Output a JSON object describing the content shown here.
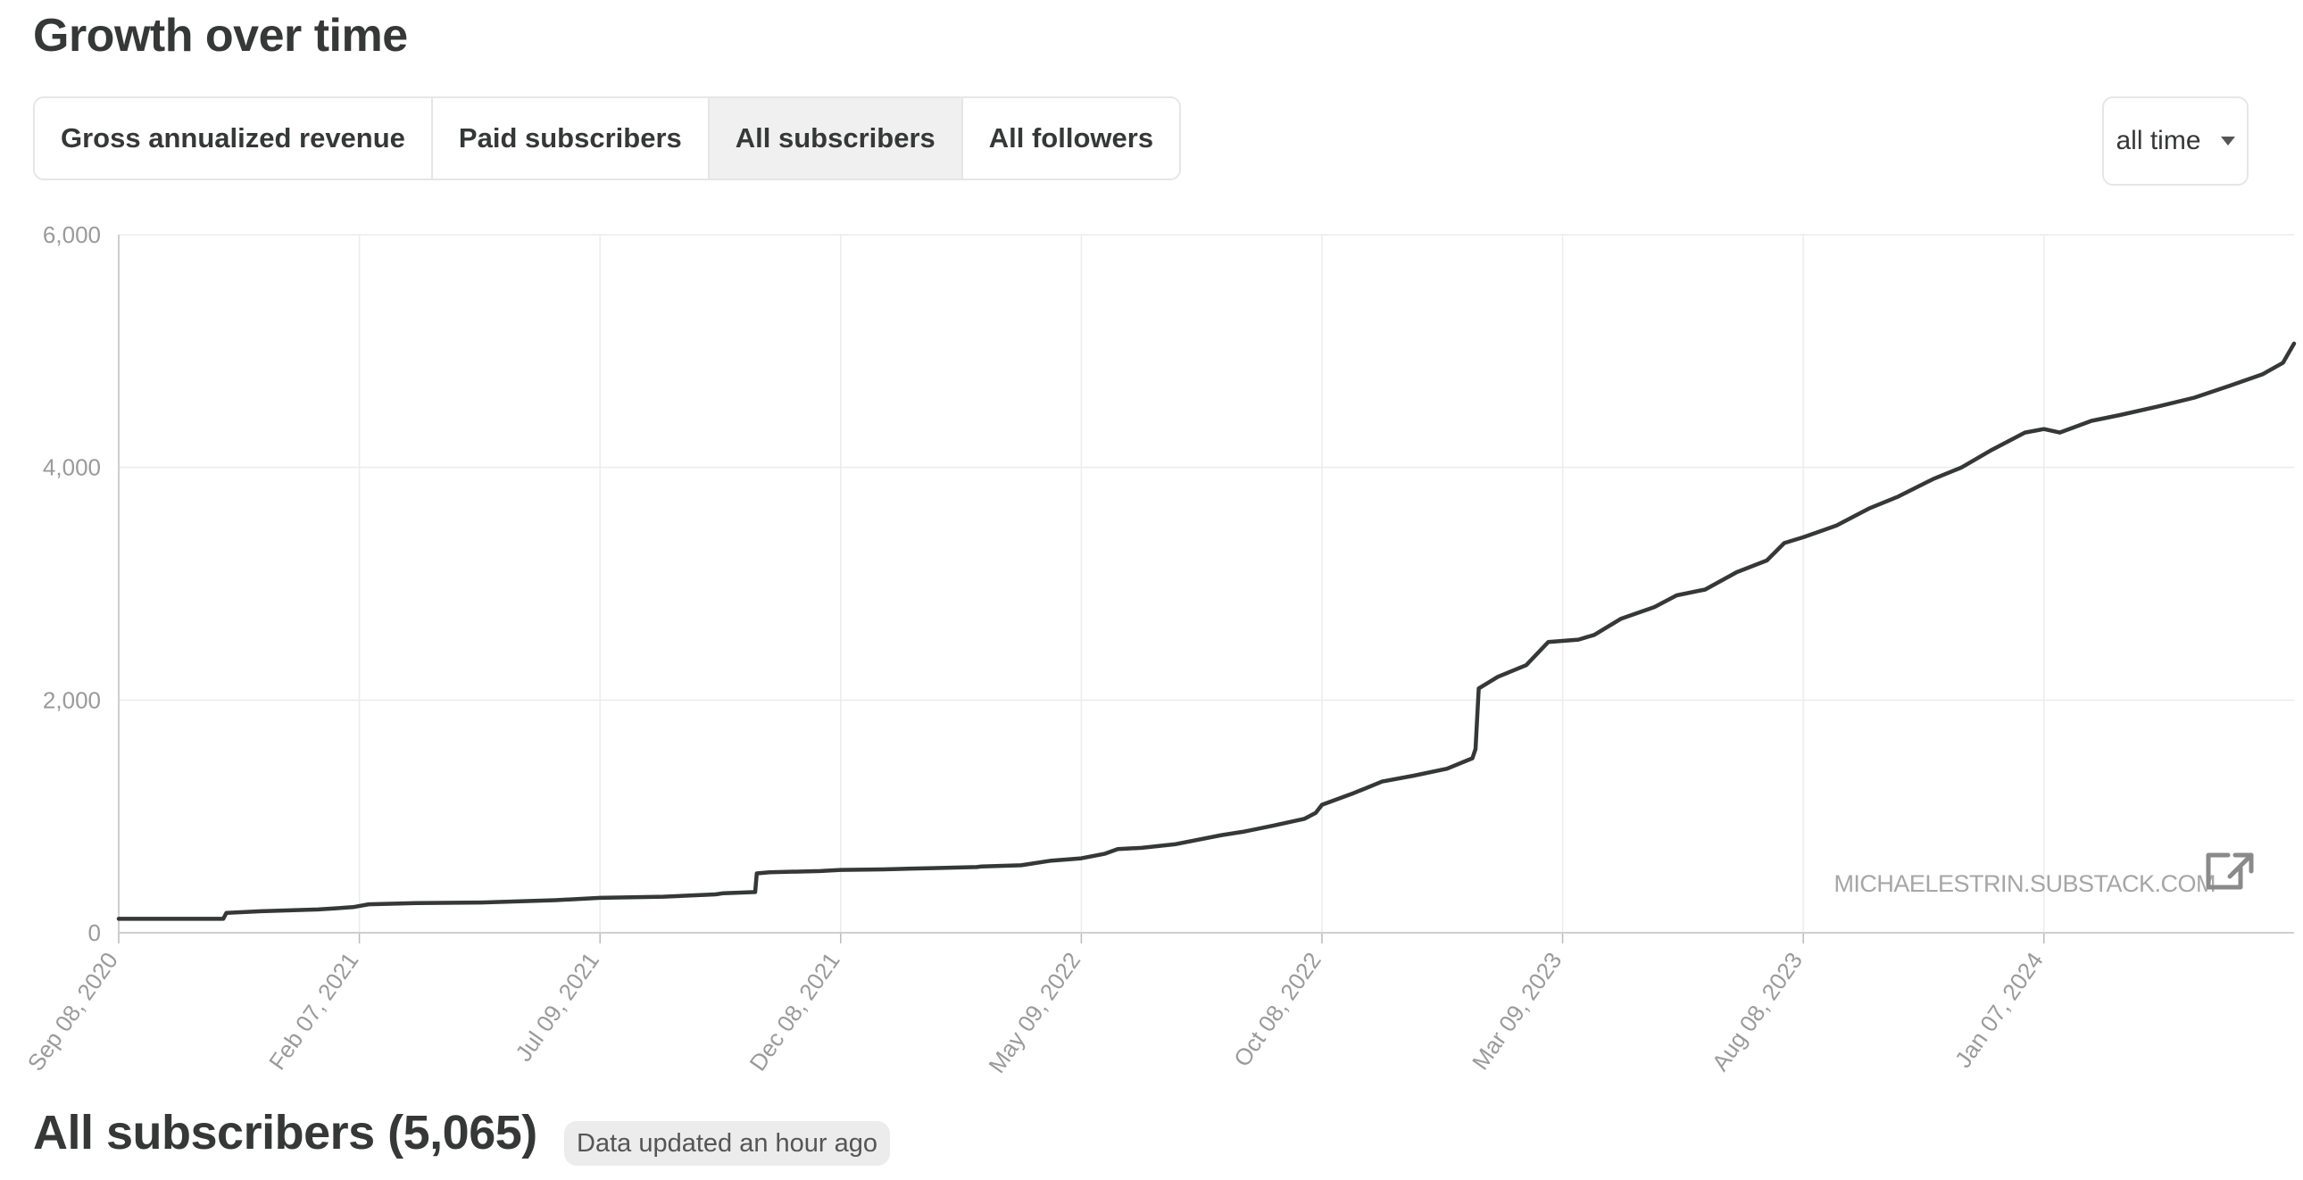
{
  "page": {
    "title": "Growth over time",
    "summary_title": "All subscribers (5,065)",
    "updated_badge": "Data updated an hour ago"
  },
  "tabs": [
    {
      "label": "Gross annualized revenue",
      "active": false
    },
    {
      "label": "Paid subscribers",
      "active": false
    },
    {
      "label": "All subscribers",
      "active": true
    },
    {
      "label": "All followers",
      "active": false
    }
  ],
  "range_select": {
    "value": "all time"
  },
  "watermark": {
    "text": "MICHAELESTRIN.SUBSTACK.COM",
    "icon": "external-link-icon"
  },
  "colors": {
    "line": "#363737",
    "grid": "#ececec",
    "axis_text": "#9a9a9a"
  },
  "chart_data": {
    "type": "line",
    "title": "",
    "xlabel": "",
    "ylabel": "",
    "ylim": [
      0,
      6000
    ],
    "yticks": [
      0,
      2000,
      4000,
      6000
    ],
    "ytick_labels": [
      "0",
      "2,000",
      "4,000",
      "6,000"
    ],
    "xlim": [
      "2020-09-08",
      "2024-06-13"
    ],
    "xticks": [
      "2020-09-08",
      "2021-02-07",
      "2021-07-09",
      "2021-12-08",
      "2022-05-09",
      "2022-10-08",
      "2023-03-09",
      "2023-08-08",
      "2024-01-07"
    ],
    "xtick_labels": [
      "Sep 08, 2020",
      "Feb 07, 2021",
      "Jul 09, 2021",
      "Dec 08, 2021",
      "May 09, 2022",
      "Oct 08, 2022",
      "Mar 09, 2023",
      "Aug 08, 2023",
      "Jan 07, 2024"
    ],
    "grid": true,
    "series": [
      {
        "x": [
          "2020-09-08",
          "2020-11-13",
          "2020-11-15",
          "2020-12-07",
          "2021-01-12",
          "2021-02-03",
          "2021-02-13",
          "2021-03-15",
          "2021-04-25",
          "2021-06-11",
          "2021-07-09",
          "2021-08-18",
          "2021-09-20",
          "2021-09-25",
          "2021-10-15",
          "2021-10-16",
          "2021-10-24",
          "2021-11-25",
          "2021-12-08",
          "2022-01-04",
          "2022-02-01",
          "2022-03-04",
          "2022-03-07",
          "2022-04-01",
          "2022-04-20",
          "2022-05-09",
          "2022-05-24",
          "2022-06-01",
          "2022-06-16",
          "2022-07-07",
          "2022-08-06",
          "2022-08-20",
          "2022-09-07",
          "2022-09-27",
          "2022-10-04",
          "2022-10-08",
          "2022-10-28",
          "2022-11-15",
          "2022-12-05",
          "2022-12-26",
          "2023-01-11",
          "2023-01-13",
          "2023-01-15",
          "2023-01-27",
          "2023-02-14",
          "2023-02-28",
          "2023-03-19",
          "2023-03-29",
          "2023-04-15",
          "2023-05-06",
          "2023-05-20",
          "2023-06-07",
          "2023-06-27",
          "2023-07-16",
          "2023-07-27",
          "2023-08-08",
          "2023-08-29",
          "2023-09-19",
          "2023-10-07",
          "2023-10-29",
          "2023-11-16",
          "2023-12-05",
          "2023-12-26",
          "2024-01-07",
          "2024-01-17",
          "2024-02-06",
          "2024-02-24",
          "2024-03-21",
          "2024-04-11",
          "2024-05-03",
          "2024-05-24",
          "2024-06-06",
          "2024-06-13"
        ],
        "y": [
          120,
          120,
          170,
          185,
          200,
          220,
          245,
          255,
          260,
          280,
          300,
          310,
          330,
          340,
          350,
          510,
          520,
          530,
          540,
          545,
          555,
          565,
          570,
          580,
          620,
          640,
          680,
          720,
          730,
          760,
          840,
          870,
          920,
          980,
          1030,
          1100,
          1200,
          1300,
          1350,
          1410,
          1500,
          1580,
          2100,
          2200,
          2300,
          2500,
          2520,
          2560,
          2700,
          2800,
          2900,
          2950,
          3100,
          3200,
          3350,
          3400,
          3500,
          3650,
          3750,
          3900,
          4000,
          4150,
          4300,
          4330,
          4300,
          4400,
          4450,
          4530,
          4600,
          4700,
          4800,
          4900,
          5065
        ]
      }
    ]
  }
}
